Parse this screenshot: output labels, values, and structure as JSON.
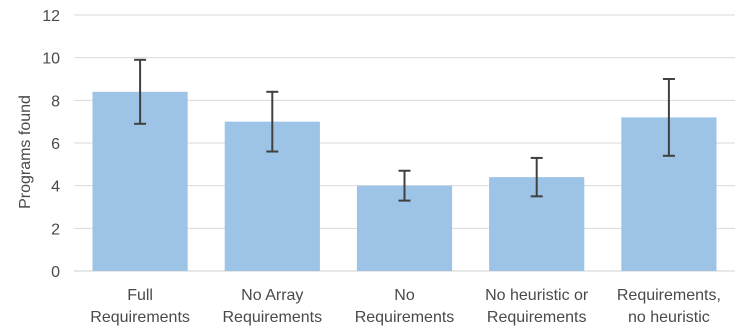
{
  "chart_data": {
    "type": "bar",
    "title": "",
    "xlabel": "",
    "ylabel": "Programs found",
    "ylim": [
      0,
      12
    ],
    "yticks": [
      0,
      2,
      4,
      6,
      8,
      10,
      12
    ],
    "grid": true,
    "categories": [
      [
        "Full",
        "Requirements"
      ],
      [
        "No Array",
        "Requirements"
      ],
      [
        "No",
        "Requirements"
      ],
      [
        "No heuristic or",
        "Requirements"
      ],
      [
        "Requirements,",
        "no heuristic"
      ]
    ],
    "values": [
      8.4,
      7.0,
      4.0,
      4.4,
      7.2
    ],
    "error_bars": [
      [
        6.9,
        9.9
      ],
      [
        5.6,
        8.4
      ],
      [
        3.3,
        4.7
      ],
      [
        3.5,
        5.3
      ],
      [
        5.4,
        9.0
      ]
    ],
    "bar_color": "#9dc3e6",
    "error_bar_color": "#404040"
  }
}
